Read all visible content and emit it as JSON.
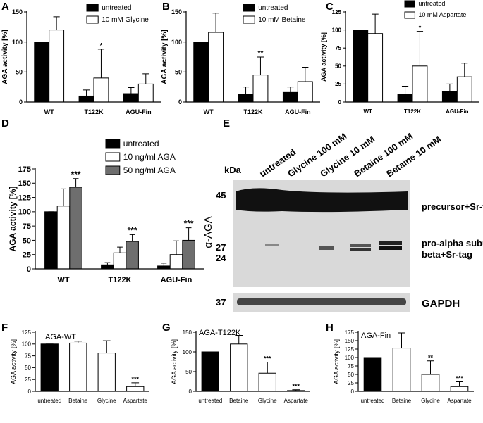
{
  "chart_data": [
    {
      "type": "bar",
      "label": "A",
      "ylabel": "AGA activity [%]",
      "categories": [
        "WT",
        "T122K",
        "AGU-Fin"
      ],
      "ylim": [
        0,
        150
      ],
      "yticks": [
        0,
        50,
        100,
        150
      ],
      "series": [
        {
          "name": "untreated",
          "color": "#000000",
          "values": [
            100,
            10,
            14
          ],
          "errors": [
            0,
            10,
            10
          ],
          "marks": [
            null,
            null,
            null
          ]
        },
        {
          "name": "10 mM Glycine",
          "color": "#ffffff",
          "values": [
            120,
            40,
            30
          ],
          "errors": [
            22,
            48,
            17
          ],
          "marks": [
            null,
            "*",
            null
          ]
        }
      ]
    },
    {
      "type": "bar",
      "label": "B",
      "ylabel": "AGA activity [%]",
      "categories": [
        "WT",
        "T122K",
        "AGU-Fin"
      ],
      "ylim": [
        0,
        150
      ],
      "yticks": [
        0,
        50,
        100,
        150
      ],
      "series": [
        {
          "name": "untreated",
          "color": "#000000",
          "values": [
            100,
            13,
            16
          ],
          "errors": [
            0,
            12,
            9
          ],
          "marks": [
            null,
            null,
            null
          ]
        },
        {
          "name": "10 mM Betaine",
          "color": "#ffffff",
          "values": [
            116,
            45,
            34
          ],
          "errors": [
            32,
            30,
            24
          ],
          "marks": [
            null,
            "**",
            null
          ]
        }
      ]
    },
    {
      "type": "bar",
      "label": "C",
      "ylabel": "AGA activity [%]",
      "categories": [
        "WT",
        "T122K",
        "AGU-Fin"
      ],
      "ylim": [
        0,
        125
      ],
      "yticks": [
        0,
        25,
        50,
        75,
        100,
        125
      ],
      "series": [
        {
          "name": "untreated",
          "color": "#000000",
          "values": [
            100,
            11,
            15
          ],
          "errors": [
            0,
            11,
            10
          ],
          "marks": [
            null,
            null,
            null
          ]
        },
        {
          "name": "10 mM Aspartate",
          "color": "#ffffff",
          "values": [
            95,
            50,
            35
          ],
          "errors": [
            27,
            48,
            19
          ],
          "marks": [
            null,
            "*",
            null
          ]
        }
      ]
    },
    {
      "type": "bar",
      "label": "D",
      "ylabel": "AGA activity [%]",
      "categories": [
        "WT",
        "T122K",
        "AGU-Fin"
      ],
      "ylim": [
        0,
        175
      ],
      "yticks": [
        0,
        25,
        50,
        75,
        100,
        125,
        150,
        175
      ],
      "series": [
        {
          "name": "untreated",
          "color": "#000000",
          "values": [
            100,
            7,
            5
          ],
          "errors": [
            0,
            4,
            5
          ],
          "marks": [
            null,
            null,
            null
          ]
        },
        {
          "name": "10 ng/ml AGA",
          "color": "#ffffff",
          "values": [
            110,
            28,
            25
          ],
          "errors": [
            30,
            10,
            24
          ],
          "marks": [
            null,
            null,
            null
          ]
        },
        {
          "name": "50 ng/ml AGA",
          "color": "#6e6e6e",
          "values": [
            143,
            48,
            50
          ],
          "errors": [
            15,
            12,
            22
          ],
          "marks": [
            "***",
            "***",
            "***"
          ]
        }
      ]
    },
    {
      "type": "bar",
      "label": "F",
      "title": "AGA-WT",
      "ylabel": "AGA activity [%]",
      "categories": [
        "untreated",
        "Betaine",
        "Glycine",
        "Aspartate"
      ],
      "ylim": [
        0,
        125
      ],
      "yticks": [
        0,
        25,
        50,
        75,
        100,
        125
      ],
      "series": [
        {
          "colors": [
            "#000000",
            "#ffffff",
            "#ffffff",
            "#ffffff"
          ],
          "values": [
            100,
            102,
            81,
            10
          ],
          "errors": [
            0,
            4,
            26,
            8
          ],
          "marks": [
            null,
            null,
            null,
            "***"
          ]
        }
      ]
    },
    {
      "type": "bar",
      "label": "G",
      "title": "AGA-T122K",
      "ylabel": "AGA activity [%]",
      "categories": [
        "untreated",
        "Betaine",
        "Glycine",
        "Aspartate"
      ],
      "ylim": [
        0,
        150
      ],
      "yticks": [
        0,
        50,
        100,
        150
      ],
      "series": [
        {
          "colors": [
            "#000000",
            "#ffffff",
            "#ffffff",
            "#ffffff"
          ],
          "values": [
            100,
            120,
            46,
            2
          ],
          "errors": [
            0,
            22,
            28,
            2
          ],
          "marks": [
            null,
            null,
            "***",
            "***"
          ]
        }
      ]
    },
    {
      "type": "bar",
      "label": "H",
      "title": "AGA-Fin",
      "ylabel": "AGA activity [%]",
      "categories": [
        "untreated",
        "Betaine",
        "Glycine",
        "Aspartate"
      ],
      "ylim": [
        0,
        175
      ],
      "yticks": [
        0,
        25,
        50,
        75,
        100,
        125,
        150,
        175
      ],
      "series": [
        {
          "colors": [
            "#000000",
            "#ffffff",
            "#ffffff",
            "#ffffff"
          ],
          "values": [
            100,
            128,
            50,
            14
          ],
          "errors": [
            0,
            45,
            40,
            14
          ],
          "marks": [
            null,
            null,
            "**",
            "***"
          ]
        }
      ]
    }
  ],
  "blot": {
    "label": "E",
    "unit": "kDa",
    "antibody": "α-AGA",
    "lanes": [
      "untreated",
      "Glycine 100 mM",
      "Glycine 10 mM",
      "Betaine 100 mM",
      "Betaine 10 mM"
    ],
    "markers": [
      "45",
      "27",
      "24",
      "37"
    ],
    "bands": [
      "precursor+Sr-tag",
      "pro-alpha subunit",
      "beta+Sr-tag",
      "GAPDH"
    ]
  }
}
